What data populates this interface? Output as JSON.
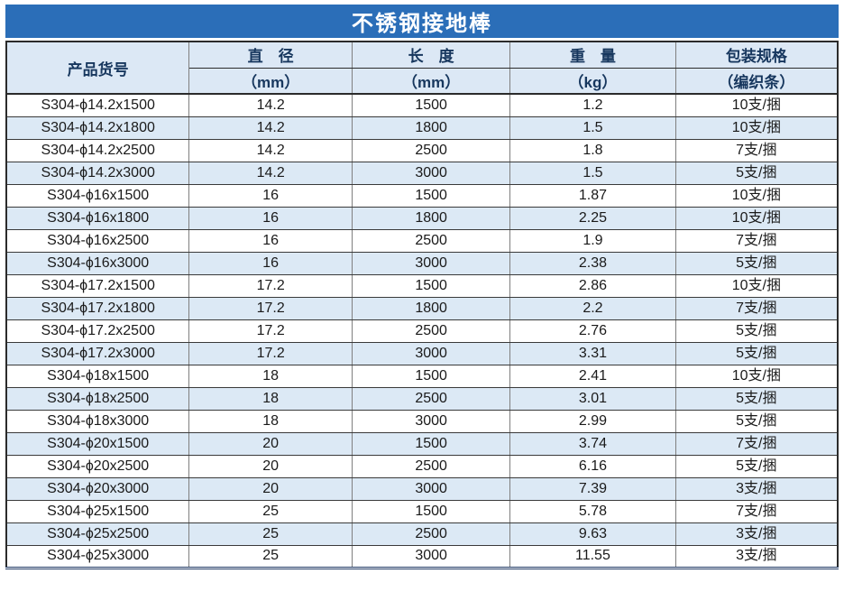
{
  "title": "不锈钢接地棒",
  "colors": {
    "title_bg": "#2B6EB8",
    "title_text": "#FFFFFF",
    "header_bg": "#DCE8F5",
    "header_text": "#17375E",
    "row_alt_bg": "#DCE9F5",
    "row_bg": "#FFFFFF",
    "row_text": "#1A1A1A",
    "outer_bottom_border": "#1F3864"
  },
  "table": {
    "columns": [
      {
        "label": "产品货号",
        "unit": ""
      },
      {
        "label": "直　径",
        "unit": "（mm）"
      },
      {
        "label": "长　度",
        "unit": "（mm）"
      },
      {
        "label": "重　量",
        "unit": "（kg）"
      },
      {
        "label": "包装规格",
        "unit": "（编织条）"
      }
    ],
    "rows": [
      [
        "S304-ϕ14.2x1500",
        "14.2",
        "1500",
        "1.2",
        "10支/捆"
      ],
      [
        "S304-ϕ14.2x1800",
        "14.2",
        "1800",
        "1.5",
        "10支/捆"
      ],
      [
        "S304-ϕ14.2x2500",
        "14.2",
        "2500",
        "1.8",
        "7支/捆"
      ],
      [
        "S304-ϕ14.2x3000",
        "14.2",
        "3000",
        "1.5",
        "5支/捆"
      ],
      [
        "S304-ϕ16x1500",
        "16",
        "1500",
        "1.87",
        "10支/捆"
      ],
      [
        "S304-ϕ16x1800",
        "16",
        "1800",
        "2.25",
        "10支/捆"
      ],
      [
        "S304-ϕ16x2500",
        "16",
        "2500",
        "1.9",
        "7支/捆"
      ],
      [
        "S304-ϕ16x3000",
        "16",
        "3000",
        "2.38",
        "5支/捆"
      ],
      [
        "S304-ϕ17.2x1500",
        "17.2",
        "1500",
        "2.86",
        "10支/捆"
      ],
      [
        "S304-ϕ17.2x1800",
        "17.2",
        "1800",
        "2.2",
        "7支/捆"
      ],
      [
        "S304-ϕ17.2x2500",
        "17.2",
        "2500",
        "2.76",
        "5支/捆"
      ],
      [
        "S304-ϕ17.2x3000",
        "17.2",
        "3000",
        "3.31",
        "5支/捆"
      ],
      [
        "S304-ϕ18x1500",
        "18",
        "1500",
        "2.41",
        "10支/捆"
      ],
      [
        "S304-ϕ18x2500",
        "18",
        "2500",
        "3.01",
        "5支/捆"
      ],
      [
        "S304-ϕ18x3000",
        "18",
        "3000",
        "2.99",
        "5支/捆"
      ],
      [
        "S304-ϕ20x1500",
        "20",
        "1500",
        "3.74",
        "7支/捆"
      ],
      [
        "S304-ϕ20x2500",
        "20",
        "2500",
        "6.16",
        "5支/捆"
      ],
      [
        "S304-ϕ20x3000",
        "20",
        "3000",
        "7.39",
        "3支/捆"
      ],
      [
        "S304-ϕ25x1500",
        "25",
        "1500",
        "5.78",
        "7支/捆"
      ],
      [
        "S304-ϕ25x2500",
        "25",
        "2500",
        "9.63",
        "3支/捆"
      ],
      [
        "S304-ϕ25x3000",
        "25",
        "3000",
        "11.55",
        "3支/捆"
      ]
    ]
  }
}
